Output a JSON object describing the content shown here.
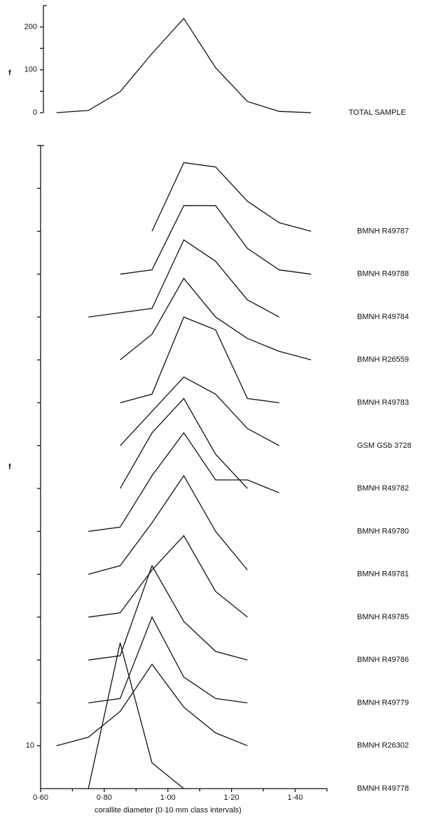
{
  "chart_data": [
    {
      "type": "line",
      "ylabel": "f",
      "x": [
        0.65,
        0.75,
        0.85,
        0.95,
        1.05,
        1.15,
        1.25,
        1.35,
        1.45
      ],
      "xlim": [
        0.6,
        1.5
      ],
      "ylim": [
        0,
        250
      ],
      "yticks": [
        0,
        100,
        200
      ],
      "minor_yticks": [
        50,
        150
      ],
      "series": [
        {
          "name": "TOTAL SAMPLE",
          "color": "#111111",
          "values": [
            0,
            5,
            49,
            138,
            220,
            105,
            26,
            3,
            0
          ]
        }
      ]
    },
    {
      "type": "offset-line",
      "ylabel": "f",
      "xlabel": "corallite diameter (0·10 mm class intervals)",
      "x": [
        0.65,
        0.75,
        0.85,
        0.95,
        1.05,
        1.15,
        1.25,
        1.35,
        1.45
      ],
      "xlim": [
        0.6,
        1.5
      ],
      "xticks": [
        {
          "value": 0.6,
          "label": "0·60"
        },
        {
          "value": 0.8,
          "label": "0·80"
        },
        {
          "value": 1.0,
          "label": "1·00"
        },
        {
          "value": 1.2,
          "label": "1·20"
        },
        {
          "value": 1.4,
          "label": "1·40"
        }
      ],
      "minor_xticks": [
        0.7,
        0.9,
        1.1,
        1.3,
        1.5
      ],
      "ylim": [
        0,
        150
      ],
      "yticks": [
        10
      ],
      "minor_yticks": [
        20,
        30,
        40,
        50,
        60,
        70,
        80,
        90,
        100,
        110,
        120,
        130,
        140,
        150
      ],
      "series": [
        {
          "name": "BMNH R49787",
          "color": "#111111",
          "values": [
            null,
            null,
            null,
            0,
            16,
            15,
            7,
            2,
            0
          ]
        },
        {
          "name": "BMNH R49788",
          "color": "#111111",
          "values": [
            null,
            null,
            0,
            1,
            16,
            16,
            6,
            1,
            0
          ]
        },
        {
          "name": "BMNH R49784",
          "color": "#111111",
          "values": [
            null,
            0,
            1,
            2,
            18,
            13,
            4,
            0,
            null
          ]
        },
        {
          "name": "BMNH R26559",
          "color": "#111111",
          "values": [
            null,
            null,
            0,
            6,
            19,
            10,
            5,
            2,
            0
          ]
        },
        {
          "name": "BMNH R49783",
          "color": "#111111",
          "values": [
            null,
            null,
            0,
            2,
            20,
            17,
            1,
            0,
            null
          ]
        },
        {
          "name": "GSM GSb 3728",
          "color": "#111111",
          "values": [
            null,
            null,
            0,
            8,
            16,
            12,
            4,
            0,
            null
          ]
        },
        {
          "name": "BMNH R49782",
          "color": "#111111",
          "values": [
            null,
            null,
            0,
            13,
            21,
            8,
            0,
            null,
            null
          ]
        },
        {
          "name": "BMNH R49780",
          "color": "#111111",
          "values": [
            null,
            0,
            1,
            13,
            23,
            12,
            12,
            9,
            null
          ]
        },
        {
          "name": "BMNH R49781",
          "color": "#111111",
          "values": [
            null,
            0,
            2,
            12,
            23,
            10,
            1,
            null,
            null
          ]
        },
        {
          "name": "BMNH R49785",
          "color": "#111111",
          "values": [
            null,
            0,
            1,
            11,
            19,
            6,
            0,
            null,
            null
          ]
        },
        {
          "name": "BMNH R49786",
          "color": "#111111",
          "values": [
            null,
            0,
            1,
            22,
            9,
            2,
            0,
            null,
            null
          ]
        },
        {
          "name": "BMNH R49779",
          "color": "#111111",
          "values": [
            null,
            0,
            1,
            20,
            6,
            1,
            0,
            null,
            null
          ]
        },
        {
          "name": "BMNH R26302",
          "color": "#111111",
          "values": [
            0,
            2,
            8,
            19,
            9,
            3,
            0,
            null,
            null
          ]
        },
        {
          "name": "BMNH R49778",
          "color": "#111111",
          "values": [
            null,
            0,
            34,
            6,
            0,
            null,
            null,
            null,
            null
          ]
        }
      ]
    }
  ]
}
